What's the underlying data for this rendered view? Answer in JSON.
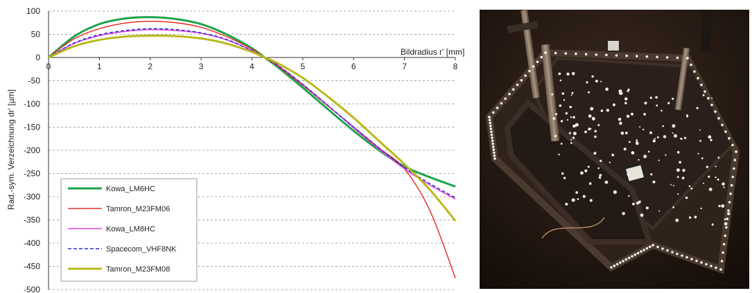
{
  "chart_data": {
    "type": "line",
    "title": "",
    "xlabel": "Bildradius r' [mm]",
    "ylabel": "Rad.-sym. Verzeichnung dr' [µm]",
    "xlim": [
      0,
      8
    ],
    "ylim": [
      -500,
      100
    ],
    "x_ticks": [
      "0",
      "1",
      "2",
      "3",
      "4",
      "5",
      "6",
      "7",
      "8"
    ],
    "y_ticks": [
      "100",
      "50",
      "0",
      "-50",
      "-100",
      "-150",
      "-200",
      "-250",
      "-300",
      "-350",
      "-400",
      "-450",
      "-500"
    ],
    "grid": "horizontal dashed",
    "legend_position": "bottom-left",
    "x": [
      0,
      0.5,
      1,
      1.5,
      2,
      2.5,
      3,
      3.5,
      4,
      4.25,
      4.5,
      5,
      5.5,
      6,
      6.5,
      7,
      7.5,
      8
    ],
    "series": [
      {
        "name": "Kowa_LM6HC",
        "color": "#1aa34a",
        "dash": "solid",
        "width": 3,
        "values": [
          0,
          45,
          72,
          84,
          87,
          83,
          72,
          50,
          20,
          0,
          -20,
          -65,
          -112,
          -158,
          -200,
          -235,
          -258,
          -278
        ]
      },
      {
        "name": "Tamron_M23FM06",
        "color": "#e8302a",
        "dash": "solid",
        "width": 1.5,
        "values": [
          0,
          40,
          62,
          74,
          78,
          75,
          65,
          45,
          18,
          0,
          -18,
          -60,
          -105,
          -150,
          -195,
          -240,
          -330,
          -475
        ]
      },
      {
        "name": "Kowa_LM8HC",
        "color": "#e040e0",
        "dash": "solid",
        "width": 1.5,
        "values": [
          0,
          30,
          47,
          56,
          60,
          58,
          52,
          38,
          15,
          0,
          -16,
          -58,
          -104,
          -152,
          -198,
          -240,
          -275,
          -305
        ]
      },
      {
        "name": "Spacecom_VHF8NK",
        "color": "#2b2bd6",
        "dash": "dashed",
        "width": 1.5,
        "values": [
          0,
          31,
          49,
          58,
          62,
          60,
          53,
          39,
          15,
          0,
          -16,
          -58,
          -104,
          -150,
          -195,
          -237,
          -272,
          -302
        ]
      },
      {
        "name": "Tamron_M23FM08",
        "color": "#b9b81a",
        "dash": "solid",
        "width": 3,
        "values": [
          0,
          24,
          38,
          45,
          47,
          46,
          41,
          30,
          12,
          0,
          -12,
          -44,
          -85,
          -130,
          -180,
          -230,
          -285,
          -352
        ]
      }
    ]
  },
  "photo": {
    "icon": "calibration-frame-photo",
    "colors": {
      "floor": "#2b1d16",
      "plate": "#2a1f1a",
      "frame": "#4a3a30",
      "target": "#f2efe6"
    }
  }
}
